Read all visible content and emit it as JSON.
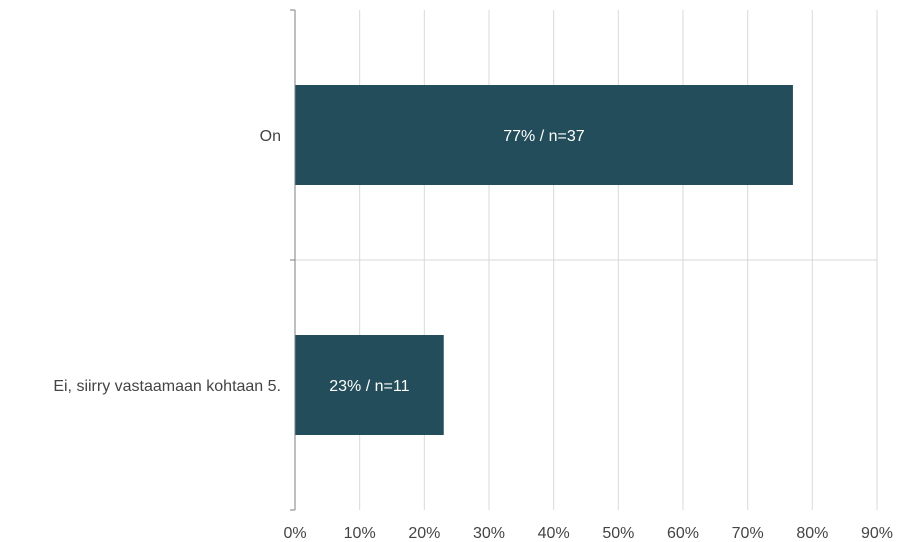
{
  "chart_data": {
    "type": "bar",
    "orientation": "horizontal",
    "categories": [
      "On",
      "Ei, siirry vastaamaan kohtaan 5."
    ],
    "values": [
      77,
      23
    ],
    "counts": [
      37,
      11
    ],
    "data_labels": [
      "77% / n=37",
      "23% / n=11"
    ],
    "x_ticks": [
      "0%",
      "10%",
      "20%",
      "30%",
      "40%",
      "50%",
      "60%",
      "70%",
      "80%",
      "90%"
    ],
    "xlim": [
      0,
      90
    ],
    "title": "",
    "xlabel": "",
    "ylabel": "",
    "grid": true,
    "legend": "none",
    "colors": {
      "bar": "#234d5a",
      "grid": "#d9d9d9",
      "axis": "#7f7f7f",
      "text": "#444444"
    }
  }
}
